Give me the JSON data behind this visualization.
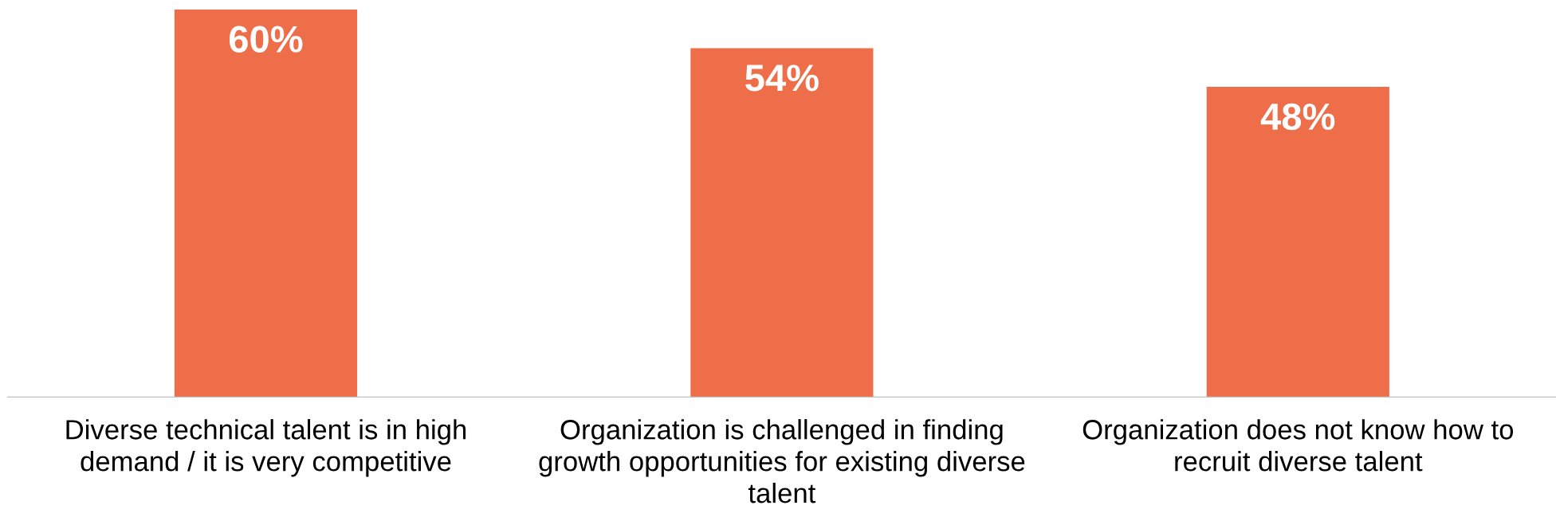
{
  "chart_data": {
    "type": "bar",
    "categories": [
      "Diverse technical talent is in high demand / it is very competitive",
      "Organization is challenged in finding growth opportunities for existing diverse talent",
      "Organization does not know how to recruit diverse talent"
    ],
    "values": [
      60,
      54,
      48
    ],
    "color": "#ef6e4a",
    "data_labels": true,
    "value_labels": [
      "60%",
      "54%",
      "48%"
    ]
  }
}
